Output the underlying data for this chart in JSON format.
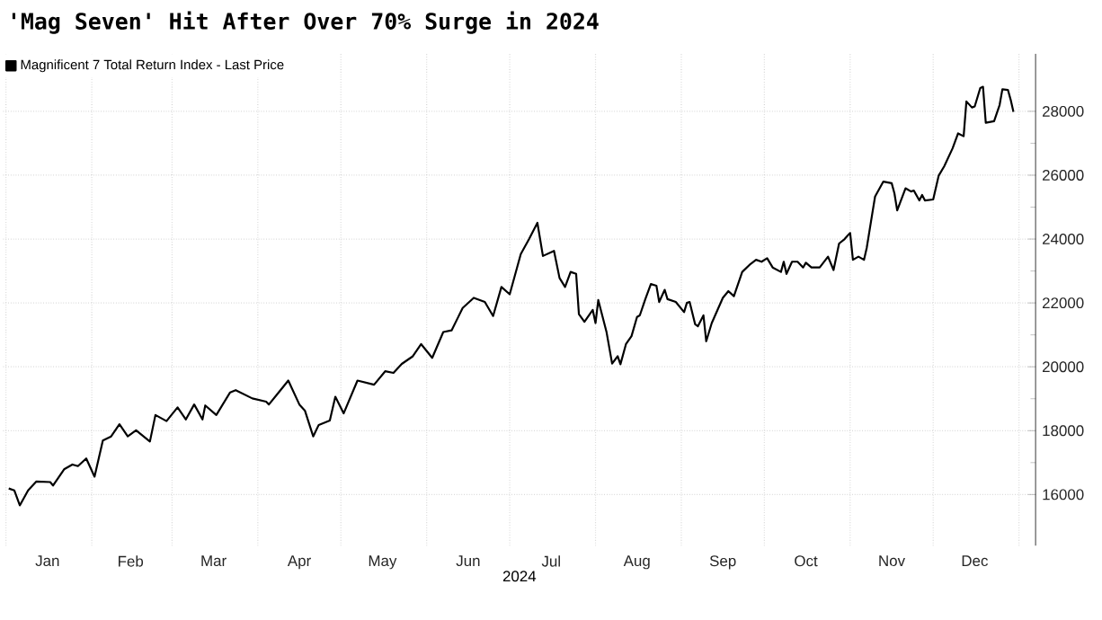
{
  "chart_data": {
    "type": "line",
    "title": "'Mag Seven' Hit After Over 70% Surge in 2024",
    "xlabel": "2024",
    "xlim": [
      "2023-12-31",
      "2025-01-07"
    ],
    "xticks": [
      {
        "value": "2024-01-01",
        "label": null
      },
      {
        "value": "2024-01-16",
        "label": "Jan"
      },
      {
        "value": "2024-02-01",
        "label": null
      },
      {
        "value": "2024-02-15",
        "label": "Feb"
      },
      {
        "value": "2024-03-01",
        "label": null
      },
      {
        "value": "2024-03-16",
        "label": "Mar"
      },
      {
        "value": "2024-04-01",
        "label": null
      },
      {
        "value": "2024-04-16",
        "label": "Apr"
      },
      {
        "value": "2024-05-01",
        "label": null
      },
      {
        "value": "2024-05-16",
        "label": "May"
      },
      {
        "value": "2024-06-01",
        "label": null
      },
      {
        "value": "2024-06-16",
        "label": "Jun"
      },
      {
        "value": "2024-07-01",
        "label": null
      },
      {
        "value": "2024-07-16",
        "label": "Jul"
      },
      {
        "value": "2024-08-01",
        "label": null
      },
      {
        "value": "2024-08-16",
        "label": "Aug"
      },
      {
        "value": "2024-09-01",
        "label": null
      },
      {
        "value": "2024-09-16",
        "label": "Sep"
      },
      {
        "value": "2024-10-01",
        "label": null
      },
      {
        "value": "2024-10-16",
        "label": "Oct"
      },
      {
        "value": "2024-11-01",
        "label": null
      },
      {
        "value": "2024-11-16",
        "label": "Nov"
      },
      {
        "value": "2024-12-01",
        "label": null
      },
      {
        "value": "2024-12-16",
        "label": "Dec"
      },
      {
        "value": "2025-01-01",
        "label": null
      }
    ],
    "ylim": [
      14400,
      29800
    ],
    "yticks": [
      16000,
      18000,
      20000,
      22000,
      24000,
      26000,
      28000
    ],
    "grid": true,
    "legend": "top left",
    "marker": "none",
    "line_style": "solid",
    "series": [
      {
        "name": "Magnificent 7 Total Return Index - Last Price",
        "color": "#000000",
        "x": [
          "2024-01-02",
          "2024-01-04",
          "2024-01-06",
          "2024-01-09",
          "2024-01-12",
          "2024-01-17",
          "2024-01-18",
          "2024-01-22",
          "2024-01-25",
          "2024-01-27",
          "2024-01-30",
          "2024-02-02",
          "2024-02-05",
          "2024-02-08",
          "2024-02-11",
          "2024-02-14",
          "2024-02-17",
          "2024-02-22",
          "2024-02-24",
          "2024-02-28",
          "2024-03-03",
          "2024-03-06",
          "2024-03-09",
          "2024-03-12",
          "2024-03-13",
          "2024-03-17",
          "2024-03-22",
          "2024-03-24",
          "2024-03-30",
          "2024-04-04",
          "2024-04-05",
          "2024-04-08",
          "2024-04-12",
          "2024-04-16",
          "2024-04-18",
          "2024-04-21",
          "2024-04-23",
          "2024-04-27",
          "2024-04-29",
          "2024-05-02",
          "2024-05-07",
          "2024-05-13",
          "2024-05-17",
          "2024-05-20",
          "2024-05-23",
          "2024-05-27",
          "2024-05-30",
          "2024-06-03",
          "2024-06-07",
          "2024-06-10",
          "2024-06-14",
          "2024-06-18",
          "2024-06-22",
          "2024-06-25",
          "2024-06-28",
          "2024-07-01",
          "2024-07-05",
          "2024-07-08",
          "2024-07-11",
          "2024-07-13",
          "2024-07-17",
          "2024-07-19",
          "2024-07-21",
          "2024-07-23",
          "2024-07-25",
          "2024-07-26",
          "2024-07-28",
          "2024-07-31",
          "2024-08-01",
          "2024-08-02",
          "2024-08-05",
          "2024-08-07",
          "2024-08-09",
          "2024-08-10",
          "2024-08-12",
          "2024-08-14",
          "2024-08-16",
          "2024-08-17",
          "2024-08-19",
          "2024-08-21",
          "2024-08-23",
          "2024-08-24",
          "2024-08-26",
          "2024-08-27",
          "2024-08-30",
          "2024-09-02",
          "2024-09-03",
          "2024-09-04",
          "2024-09-06",
          "2024-09-07",
          "2024-09-09",
          "2024-09-10",
          "2024-09-12",
          "2024-09-16",
          "2024-09-18",
          "2024-09-20",
          "2024-09-23",
          "2024-09-26",
          "2024-09-28",
          "2024-09-30",
          "2024-10-02",
          "2024-10-04",
          "2024-10-07",
          "2024-10-08",
          "2024-10-09",
          "2024-10-11",
          "2024-10-13",
          "2024-10-15",
          "2024-10-16",
          "2024-10-18",
          "2024-10-21",
          "2024-10-24",
          "2024-10-26",
          "2024-10-28",
          "2024-10-30",
          "2024-10-31",
          "2024-11-01",
          "2024-11-02",
          "2024-11-04",
          "2024-11-06",
          "2024-11-07",
          "2024-11-09",
          "2024-11-10",
          "2024-11-13",
          "2024-11-16",
          "2024-11-17",
          "2024-11-18",
          "2024-11-21",
          "2024-11-23",
          "2024-11-24",
          "2024-11-26",
          "2024-11-27",
          "2024-11-28",
          "2024-12-01",
          "2024-12-03",
          "2024-12-05",
          "2024-12-08",
          "2024-12-10",
          "2024-12-12",
          "2024-12-13",
          "2024-12-15",
          "2024-12-16",
          "2024-12-18",
          "2024-12-19",
          "2024-12-20",
          "2024-12-23",
          "2024-12-25",
          "2024-12-26",
          "2024-12-28",
          "2024-12-29",
          "2024-12-30"
        ],
        "values": [
          16190,
          16130,
          15660,
          16130,
          16410,
          16390,
          16280,
          16790,
          16940,
          16890,
          17130,
          16560,
          17690,
          17820,
          18200,
          17820,
          18010,
          17660,
          18490,
          18300,
          18730,
          18350,
          18820,
          18350,
          18790,
          18490,
          19200,
          19270,
          19010,
          18910,
          18820,
          19140,
          19570,
          18820,
          18630,
          17820,
          18180,
          18320,
          19060,
          18540,
          19570,
          19440,
          19860,
          19810,
          20090,
          20330,
          20710,
          20280,
          21090,
          21140,
          21840,
          22160,
          22030,
          21590,
          22500,
          22270,
          23530,
          24000,
          24510,
          23470,
          23630,
          22780,
          22500,
          22970,
          22910,
          21650,
          21410,
          21780,
          21370,
          22090,
          21080,
          20100,
          20330,
          20080,
          20710,
          20960,
          21560,
          21610,
          22120,
          22590,
          22540,
          22030,
          22410,
          22120,
          22030,
          21710,
          22000,
          22030,
          21330,
          21270,
          21610,
          20800,
          21370,
          22160,
          22370,
          22210,
          22970,
          23220,
          23350,
          23290,
          23400,
          23110,
          22970,
          23290,
          22910,
          23290,
          23290,
          23110,
          23260,
          23110,
          23110,
          23450,
          23030,
          23860,
          24000,
          24100,
          24190,
          23350,
          23450,
          23350,
          23730,
          24800,
          25330,
          25800,
          25750,
          25430,
          24900,
          25590,
          25490,
          25520,
          25210,
          25380,
          25210,
          25240,
          25990,
          26280,
          26840,
          27310,
          27220,
          28310,
          28120,
          28150,
          28730,
          28770,
          27640,
          27690,
          28200,
          28690,
          28670,
          28360,
          27980
        ]
      }
    ]
  }
}
